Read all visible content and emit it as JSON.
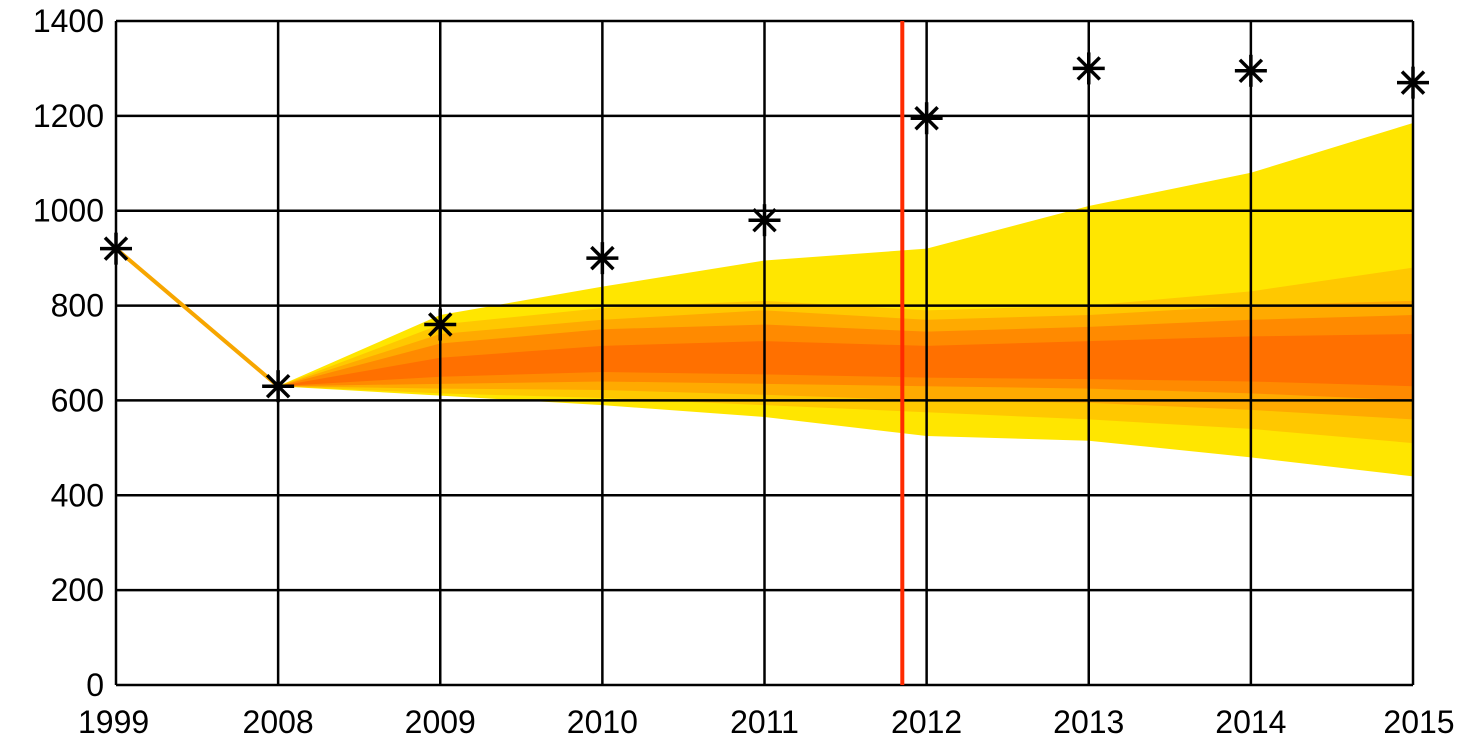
{
  "chart_data": {
    "type": "line",
    "title": "",
    "xlabel": "",
    "ylabel": "",
    "categories": [
      "1999",
      "2008",
      "2009",
      "2010",
      "2011",
      "2012",
      "2013",
      "2014",
      "2015"
    ],
    "ylim": [
      0,
      1400
    ],
    "yticks": [
      0,
      200,
      400,
      600,
      800,
      1000,
      1200,
      1400
    ],
    "grid": true,
    "series": [
      {
        "marker": "asterisk",
        "color": "#000000",
        "values": [
          920,
          630,
          760,
          900,
          980,
          1195,
          1300,
          1295,
          1270
        ]
      },
      {
        "marker": "none",
        "color": "#f7a600",
        "x": [
          "1999",
          "2008"
        ],
        "values": [
          920,
          630
        ]
      }
    ],
    "fan_bands": {
      "x": [
        "2008",
        "2009",
        "2010",
        "2011",
        "2012",
        "2013",
        "2014",
        "2015"
      ],
      "colors": [
        "#ffe600",
        "#ffc800",
        "#ffaa00",
        "#ff8a00",
        "#ff7000"
      ],
      "bands": [
        {
          "lower": [
            630,
            610,
            590,
            565,
            525,
            515,
            480,
            440
          ],
          "upper": [
            630,
            780,
            840,
            895,
            920,
            1010,
            1080,
            1185
          ]
        },
        {
          "lower": [
            630,
            615,
            605,
            590,
            575,
            560,
            540,
            510
          ],
          "upper": [
            630,
            760,
            795,
            810,
            790,
            800,
            830,
            880
          ]
        },
        {
          "lower": [
            630,
            625,
            622,
            612,
            600,
            595,
            580,
            560
          ],
          "upper": [
            630,
            740,
            770,
            790,
            770,
            780,
            800,
            810
          ]
        },
        {
          "lower": [
            630,
            635,
            640,
            635,
            630,
            625,
            615,
            600
          ],
          "upper": [
            630,
            720,
            750,
            760,
            745,
            755,
            770,
            780
          ]
        },
        {
          "lower": [
            630,
            650,
            660,
            655,
            648,
            645,
            640,
            630
          ],
          "upper": [
            630,
            690,
            715,
            725,
            715,
            725,
            735,
            740
          ]
        }
      ]
    },
    "vertical_marker": {
      "x": "2012",
      "offset": -0.15,
      "color": "#ff2a00"
    }
  }
}
